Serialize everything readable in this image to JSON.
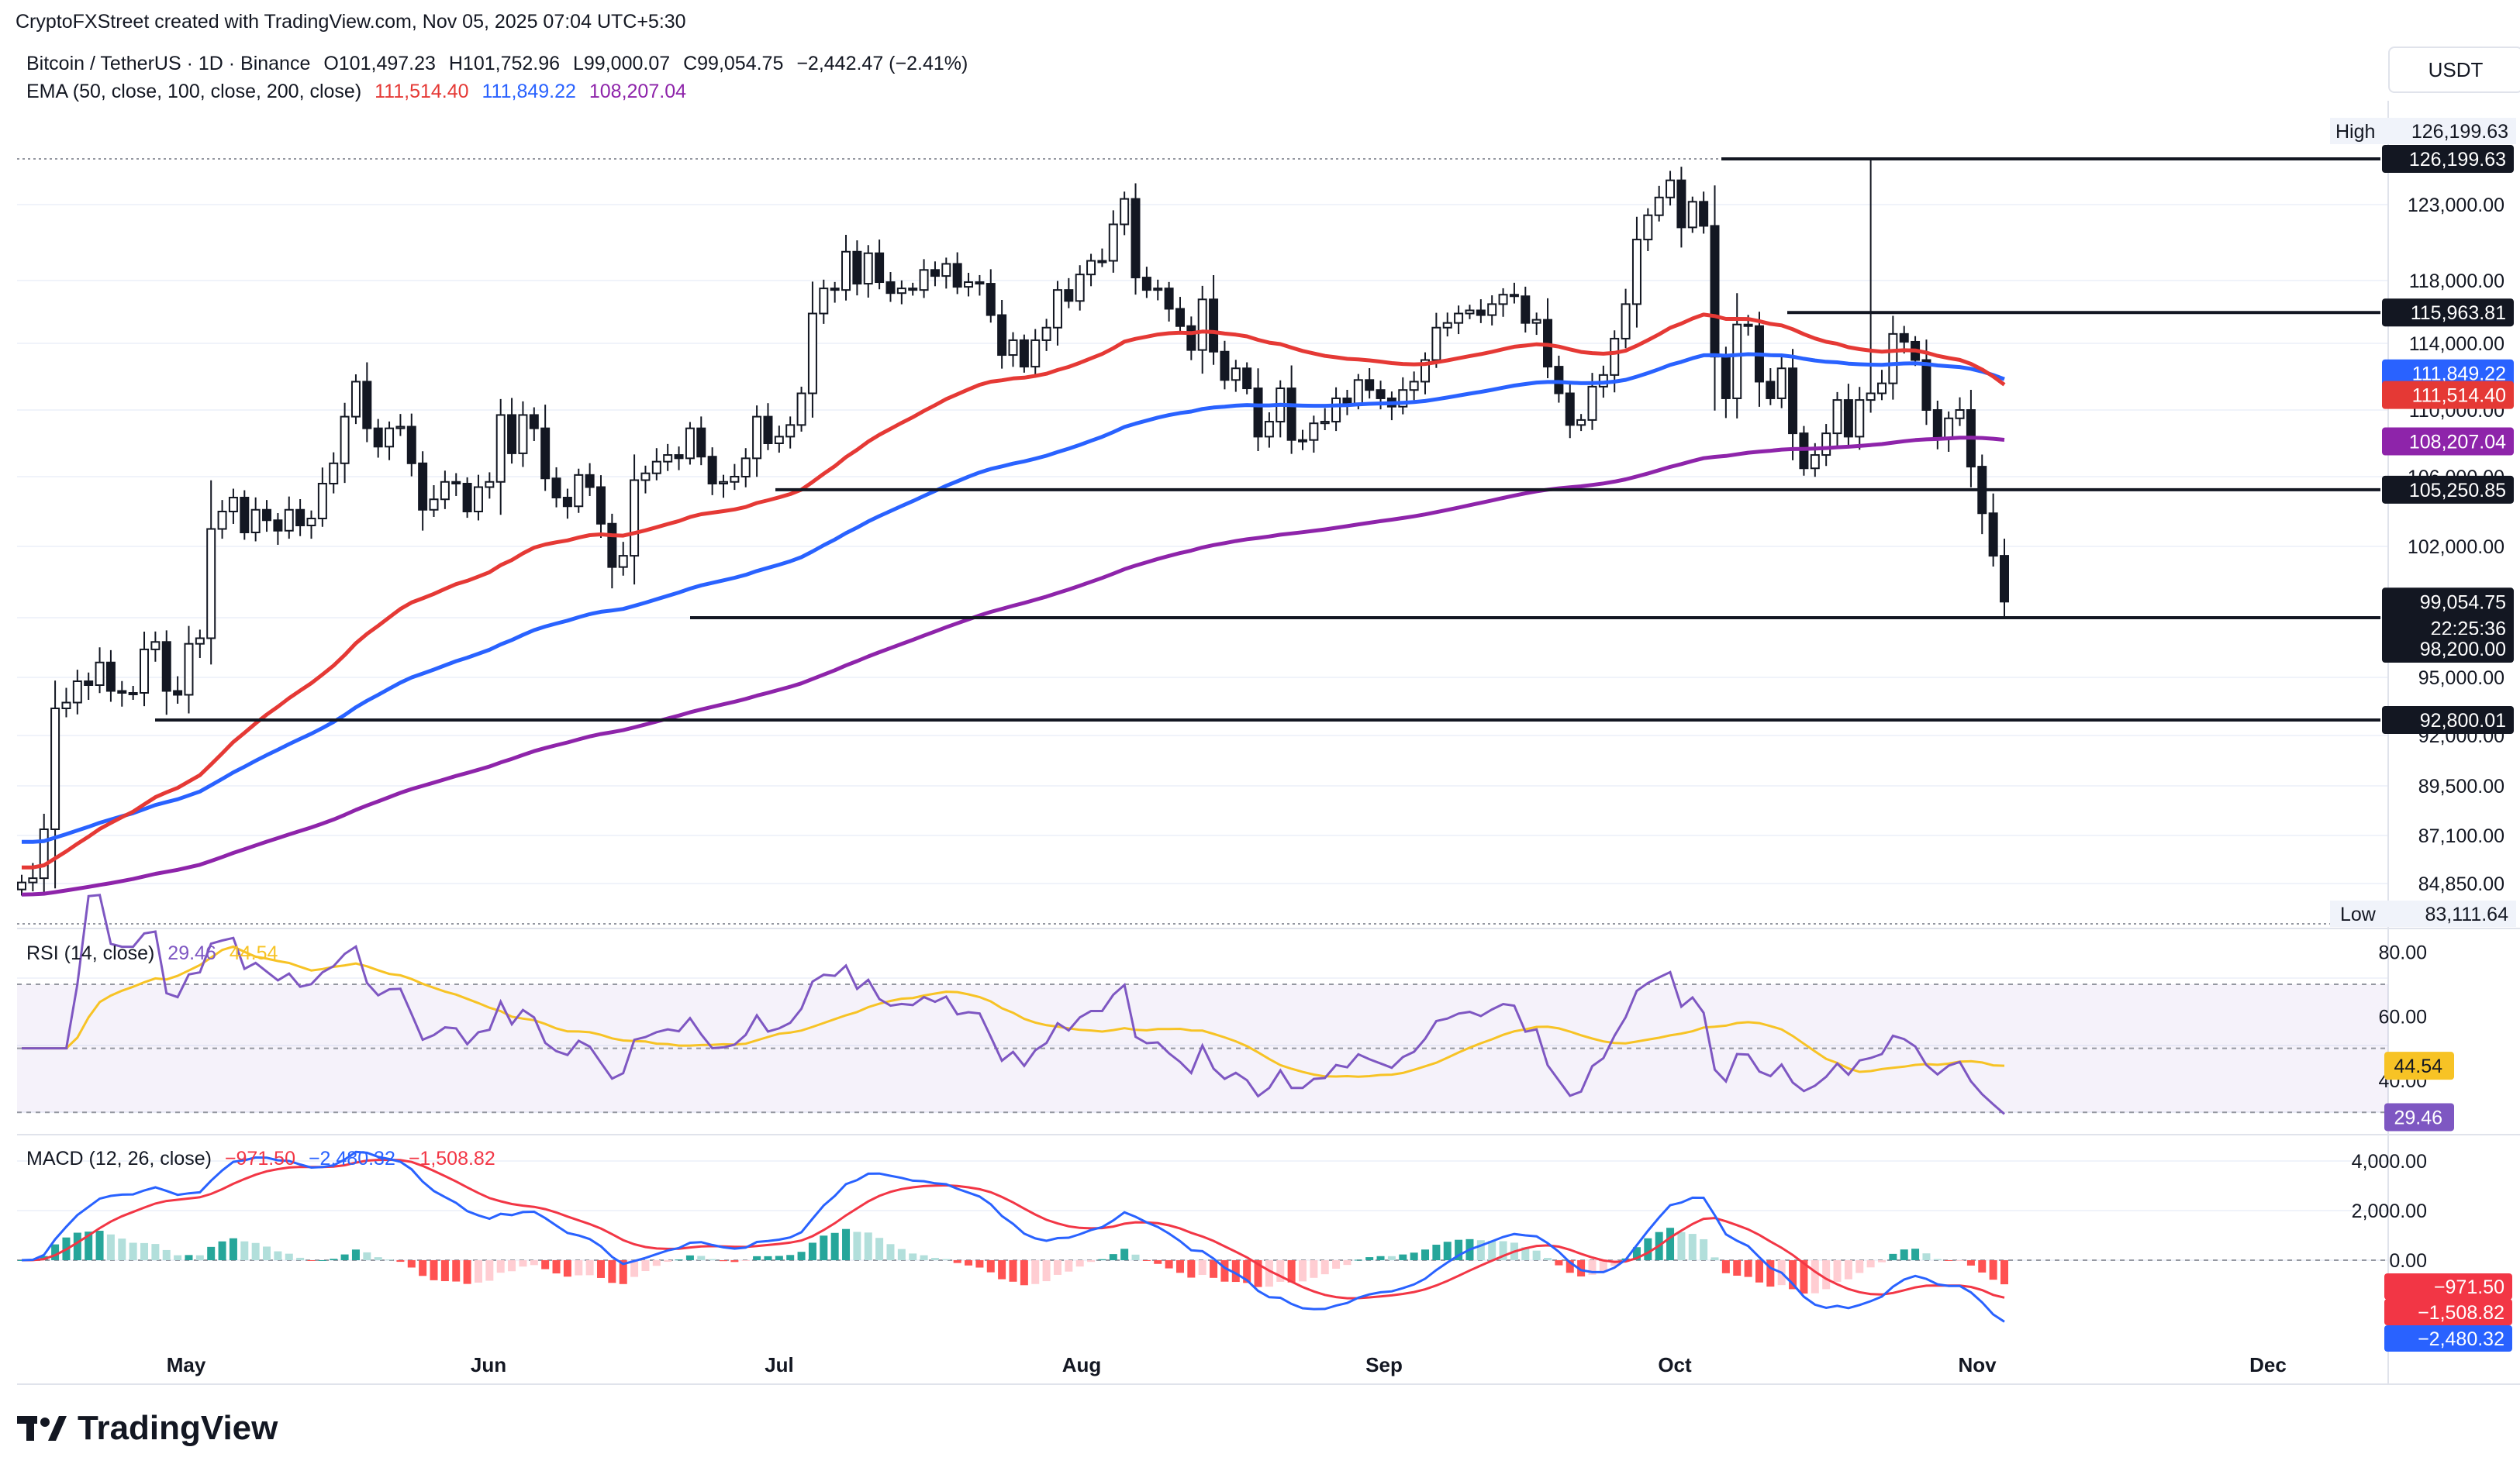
{
  "credit": "CryptoFXStreet created with TradingView.com, Nov 05, 2025 07:04 UTC+5:30",
  "symbol_line": {
    "symbol": "Bitcoin / TetherUS · 1D · Binance",
    "open_label": "O",
    "open": "101,497.23",
    "high_label": "H",
    "high": "101,752.96",
    "low_label": "L",
    "low": "99,000.07",
    "close_label": "C",
    "close": "99,054.75",
    "change": "−2,442.47 (−2.41%)"
  },
  "ema_line": {
    "label": "EMA (50, close, 100, close, 200, close)",
    "ema50": "111,514.40",
    "ema100": "111,849.22",
    "ema200": "108,207.04"
  },
  "currency": "USDT",
  "brand": "TradingView",
  "colors": {
    "up": "#089981",
    "down": "#f23645",
    "ema50": "#e53935",
    "ema100": "#2962ff",
    "ema200": "#8e24aa",
    "rsi": "#7e57c2",
    "rsi_ma": "#f7c325",
    "macd": "#2962ff",
    "signal": "#f23645"
  },
  "price_axis": {
    "ticks": [
      "123,000.00",
      "118,000.00",
      "114,000.00",
      "110,000.00",
      "106,000.00",
      "102,000.00",
      "95,000.00",
      "92,000.00",
      "89,500.00",
      "87,100.00",
      "84,850.00"
    ],
    "high_label": "High",
    "high_value": "126,199.63",
    "low_label": "Low",
    "low_value": "83,111.64",
    "tags": {
      "t126": "126,199.63",
      "t115": "115,963.81",
      "t111849": "111,849.22",
      "t111514": "111,514.40",
      "t108": "108,207.04",
      "t105": "105,250.85",
      "last": "99,054.75",
      "countdown": "22:25:36",
      "t98": "98,200.00",
      "t92": "92,800.01"
    }
  },
  "months": [
    "May",
    "Jun",
    "Jul",
    "Aug",
    "Sep",
    "Oct",
    "Nov",
    "Dec"
  ],
  "rsi": {
    "label": "RSI (14, close)",
    "value": "29.46",
    "ma": "44.54",
    "ticks": [
      "80.00",
      "60.00",
      "40.00"
    ]
  },
  "macd": {
    "label": "MACD (12, 26, close)",
    "hist": "−971.50",
    "macd": "−2,480.32",
    "signal": "−1,508.82",
    "ticks": [
      "4,000.00",
      "2,000.00",
      "0.00"
    ]
  },
  "chart_data": {
    "type": "candlestick",
    "title": "Bitcoin / TetherUS · 1D · Binance",
    "x_start": "2025-04-18",
    "x_end": "2025-11-05",
    "ylim": [
      83111.64,
      126199.63
    ],
    "horizontal_levels": [
      126199.63,
      115963.81,
      105250.85,
      98200.0,
      92800.01
    ],
    "close": [
      84900,
      85100,
      87400,
      93400,
      93700,
      94800,
      94600,
      95800,
      94300,
      94200,
      94200,
      96500,
      96900,
      94300,
      94100,
      96800,
      97100,
      103000,
      104000,
      104800,
      102800,
      104100,
      103500,
      102900,
      104100,
      103200,
      103600,
      105600,
      106800,
      109600,
      111700,
      108900,
      107800,
      108900,
      109000,
      106800,
      104100,
      104700,
      105700,
      105600,
      104000,
      105400,
      105700,
      109700,
      107400,
      109700,
      108900,
      105900,
      104800,
      104300,
      106100,
      105400,
      103300,
      100900,
      101500,
      105800,
      106200,
      106900,
      107300,
      107100,
      108900,
      107200,
      105600,
      105700,
      106000,
      107100,
      109600,
      108000,
      108400,
      109100,
      111000,
      115900,
      117500,
      117400,
      119900,
      117800,
      119800,
      117900,
      117200,
      117500,
      117400,
      118700,
      118300,
      119100,
      117600,
      117900,
      117800,
      115800,
      113300,
      114200,
      112600,
      114200,
      115000,
      117400,
      116700,
      118400,
      119300,
      119300,
      121700,
      123400,
      118200,
      117400,
      117500,
      116200,
      115100,
      113600,
      116800,
      113500,
      111800,
      112500,
      111300,
      108400,
      109300,
      111300,
      108200,
      108200,
      109200,
      109300,
      110700,
      110400,
      111800,
      111200,
      110700,
      110200,
      111200,
      111700,
      113000,
      115000,
      115300,
      115900,
      116100,
      115800,
      116500,
      117100,
      117000,
      115300,
      115500,
      112600,
      111000,
      109100,
      109400,
      111400,
      112100,
      114300,
      116500,
      120700,
      122300,
      123500,
      124700,
      121500,
      123200,
      121600,
      113200,
      110700,
      115200,
      115100,
      111700,
      110700,
      112500,
      108600,
      106500,
      107300,
      108600,
      110600,
      108400,
      110600,
      111000,
      111600,
      114600,
      114100,
      113000,
      110000,
      108300,
      109500,
      110000,
      106600,
      103900,
      101500,
      99054.75
    ],
    "ema50_last": 111514.4,
    "ema100_last": 111849.22,
    "ema200_last": 108207.04,
    "rsi_last": 29.46,
    "rsi_ma_last": 44.54,
    "macd_last": -2480.32,
    "signal_last": -1508.82,
    "hist_last": -971.5
  }
}
